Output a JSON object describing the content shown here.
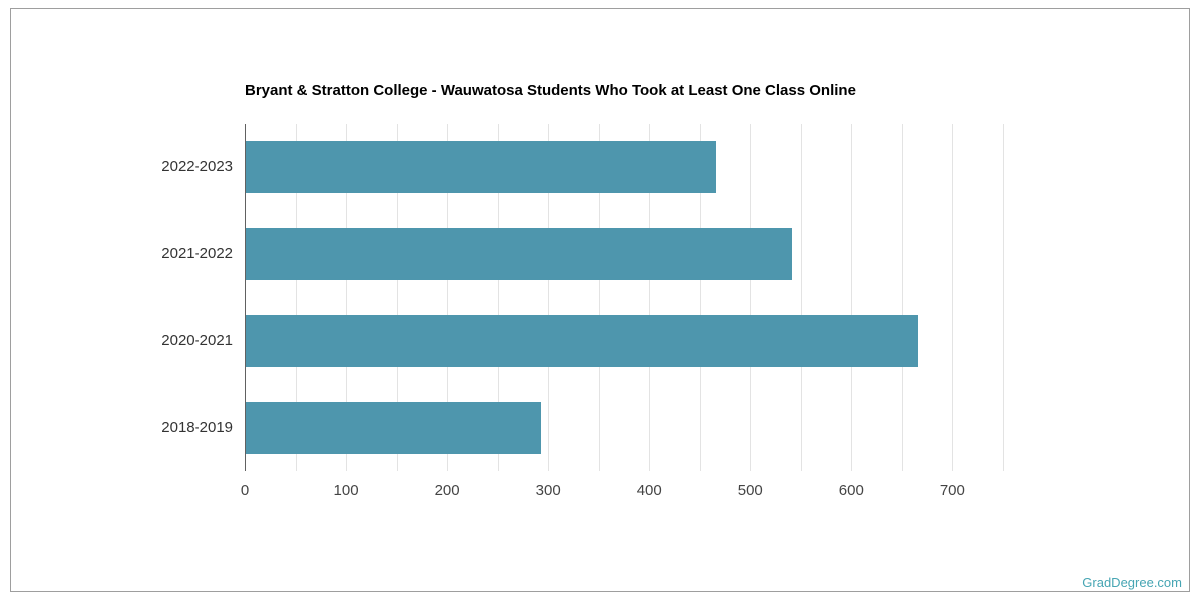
{
  "chart_data": {
    "type": "bar",
    "orientation": "horizontal",
    "title": "Bryant & Stratton College - Wauwatosa Students Who Took at Least One Class Online",
    "categories": [
      "2022-2023",
      "2021-2022",
      "2020-2021",
      "2018-2019"
    ],
    "values": [
      465,
      540,
      665,
      292
    ],
    "xlabel": "",
    "ylabel": "",
    "xlim": [
      0,
      760
    ],
    "x_ticks": [
      0,
      100,
      200,
      300,
      400,
      500,
      600,
      700
    ],
    "grid_step": 50,
    "grid": true,
    "legend": false,
    "bar_color": "#4e96ad"
  },
  "watermark": {
    "text": "GradDegree.com",
    "color": "#46a5b3"
  }
}
